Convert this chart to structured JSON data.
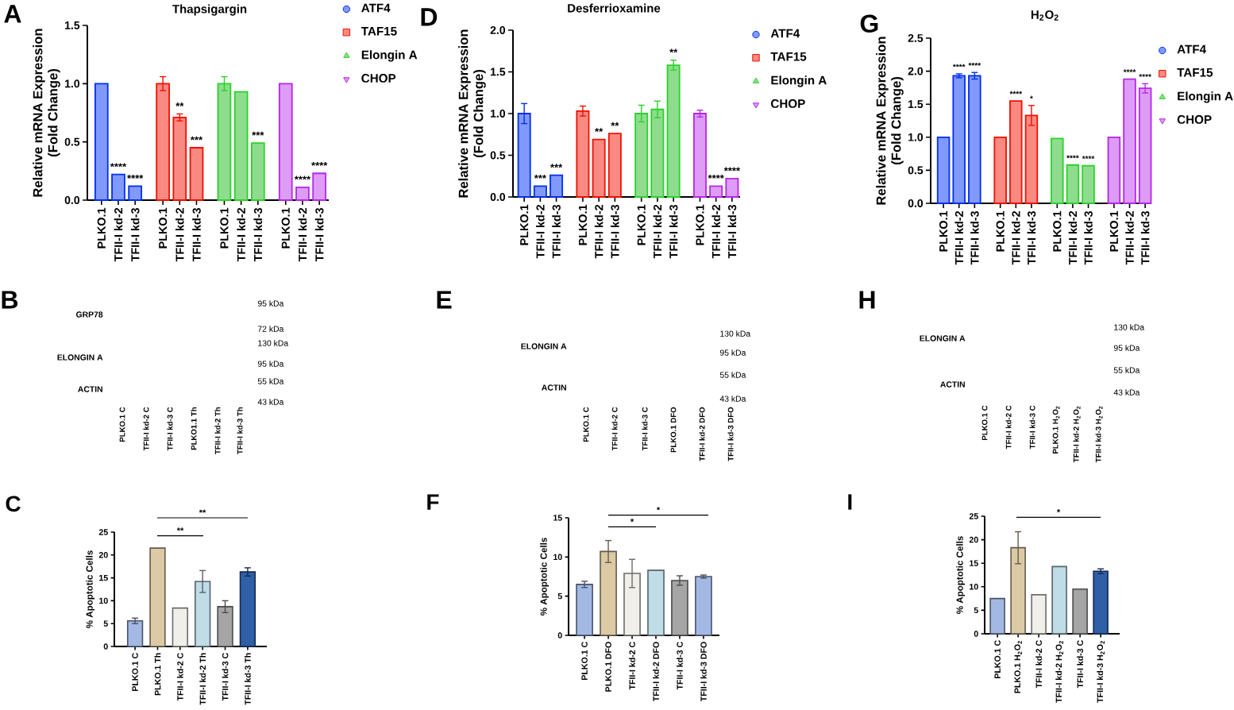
{
  "chart_data": [
    {
      "type": "bar",
      "title": "Thapsigargin",
      "ylabel": "Relative mRNA Expression (Fold Change)",
      "categories": [
        "PLKO.1",
        "TFII-I kd-2",
        "TFII-I kd-3",
        "PLKO.1",
        "TFII-I kd-2",
        "TFII-I kd-3",
        "PLKO.1",
        "TFII-I kd-2",
        "TFII-I kd-3",
        "PLKO.1",
        "TFII-I kd-2",
        "TFII-I kd-3"
      ],
      "series": [
        {
          "name": "ATF4",
          "color": "#8199fb",
          "marker": "circle",
          "values": [
            1.0,
            0.22,
            0.12,
            null,
            null,
            null,
            null,
            null,
            null,
            null,
            null,
            null
          ],
          "value_labels": [
            null,
            "****",
            "****",
            null,
            null,
            null,
            null,
            null,
            null,
            null,
            null,
            null
          ]
        },
        {
          "name": "TAF15",
          "color": "#f98a82",
          "marker": "square",
          "values": [
            null,
            null,
            null,
            1.0,
            0.71,
            0.45,
            null,
            null,
            null,
            null,
            null,
            null
          ],
          "errors": [
            null,
            null,
            null,
            0.06,
            0.03,
            null,
            null,
            null,
            null,
            null,
            null,
            null
          ],
          "value_labels": [
            null,
            null,
            null,
            null,
            "**",
            "***",
            null,
            null,
            null,
            null,
            null,
            null
          ]
        },
        {
          "name": "Elongin A",
          "color": "#8fdc8f",
          "marker": "triangle",
          "values": [
            null,
            null,
            null,
            null,
            null,
            null,
            1.0,
            0.93,
            0.49,
            null,
            null,
            null
          ],
          "errors": [
            null,
            null,
            null,
            null,
            null,
            null,
            0.06,
            null,
            null,
            null,
            null,
            null
          ],
          "value_labels": [
            null,
            null,
            null,
            null,
            null,
            null,
            null,
            null,
            "***",
            null,
            null,
            null
          ]
        },
        {
          "name": "CHOP",
          "color": "#dd9cf5",
          "marker": "triangle down",
          "values": [
            null,
            null,
            null,
            null,
            null,
            null,
            null,
            null,
            null,
            1.0,
            0.11,
            0.23
          ],
          "value_labels": [
            null,
            null,
            null,
            null,
            null,
            null,
            null,
            null,
            null,
            null,
            "****",
            "****"
          ]
        }
      ],
      "ylim": [
        0,
        1.5
      ],
      "yticks": [
        {
          "value": 0,
          "label": "0.0"
        },
        0.5,
        {
          "value": 1,
          "label": "1.0"
        },
        1.5
      ],
      "legend": "top right",
      "annotations": [
        "A"
      ]
    },
    {
      "type": "bar",
      "title": "Desferrioxamine",
      "ylabel": "Relative mRNA Expression (Fold Change)",
      "categories": [
        "PLKO.1",
        "TFII-I kd-2",
        "TFII-I kd-3",
        "PLKO.1",
        "TFII-I kd-2",
        "TFII-I kd-3",
        "PLKO.1",
        "TFII-I kd-2",
        "TFII-I kd-3",
        "PLKO.1",
        "TFII-I kd-2",
        "TFII-I kd-3"
      ],
      "series": [
        {
          "name": "ATF4",
          "color": "#8199fb",
          "marker": "circle",
          "values": [
            1.0,
            0.13,
            0.26,
            null,
            null,
            null,
            null,
            null,
            null,
            null,
            null,
            null
          ],
          "errors": [
            0.12,
            null,
            null,
            null,
            null,
            null,
            null,
            null,
            null,
            null,
            null,
            null
          ],
          "value_labels": [
            null,
            "***",
            "***",
            null,
            null,
            null,
            null,
            null,
            null,
            null,
            null,
            null
          ]
        },
        {
          "name": "TAF15",
          "color": "#f98a82",
          "marker": "square",
          "values": [
            null,
            null,
            null,
            1.03,
            0.69,
            0.76,
            null,
            null,
            null,
            null,
            null,
            null
          ],
          "errors": [
            null,
            null,
            null,
            0.06,
            null,
            null,
            null,
            null,
            null,
            null,
            null,
            null
          ],
          "value_labels": [
            null,
            null,
            null,
            null,
            "**",
            "**",
            null,
            null,
            null,
            null,
            null,
            null
          ]
        },
        {
          "name": "Elongin A",
          "color": "#8fdc8f",
          "marker": "triangle",
          "values": [
            null,
            null,
            null,
            null,
            null,
            null,
            1.0,
            1.05,
            1.58,
            null,
            null,
            null
          ],
          "errors": [
            null,
            null,
            null,
            null,
            null,
            null,
            0.1,
            0.1,
            0.06,
            null,
            null,
            null
          ],
          "value_labels": [
            null,
            null,
            null,
            null,
            null,
            null,
            null,
            null,
            "**",
            null,
            null,
            null
          ]
        },
        {
          "name": "CHOP",
          "color": "#dd9cf5",
          "marker": "triangle down",
          "values": [
            null,
            null,
            null,
            null,
            null,
            null,
            null,
            null,
            null,
            1.0,
            0.13,
            0.22
          ],
          "errors": [
            null,
            null,
            null,
            null,
            null,
            null,
            null,
            null,
            null,
            0.04,
            null,
            null
          ],
          "value_labels": [
            null,
            null,
            null,
            null,
            null,
            null,
            null,
            null,
            null,
            null,
            "****",
            "****"
          ]
        }
      ],
      "ylim": [
        0,
        2
      ],
      "yticks": [
        {
          "value": 0,
          "label": "0.0"
        },
        0.5,
        {
          "value": 1,
          "label": "1.0"
        },
        1.5,
        {
          "value": 2,
          "label": "2.0"
        }
      ],
      "legend": "top right",
      "annotations": [
        "D"
      ]
    },
    {
      "type": "bar",
      "title": "H$_{2}$O$_{2}$",
      "ylabel": "Relative mRNA Expression (Fold Change)",
      "categories": [
        "PLKO.1",
        "TFII-I kd-2",
        "TFII-I kd-3",
        "PLKO.1",
        "TFII-I kd-2",
        "TFII-I kd-3",
        "PLKO.1",
        "TFII-I kd-2",
        "TFII-I kd-3",
        "PLKO.1",
        "TFII-I kd-2",
        "TFII-I kd-3"
      ],
      "series": [
        {
          "name": "ATF4",
          "color": "#8199fb",
          "marker": "circle",
          "values": [
            1.0,
            1.93,
            1.93,
            null,
            null,
            null,
            null,
            null,
            null,
            null,
            null,
            null
          ],
          "errors": [
            null,
            0.03,
            0.05,
            null,
            null,
            null,
            null,
            null,
            null,
            null,
            null,
            null
          ],
          "value_labels": [
            null,
            "****",
            "****",
            null,
            null,
            null,
            null,
            null,
            null,
            null,
            null,
            null
          ]
        },
        {
          "name": "TAF15",
          "color": "#f98a82",
          "marker": "square",
          "values": [
            null,
            null,
            null,
            1.0,
            1.55,
            1.33,
            null,
            null,
            null,
            null,
            null,
            null
          ],
          "errors": [
            null,
            null,
            null,
            null,
            null,
            0.15,
            null,
            null,
            null,
            null,
            null,
            null
          ],
          "value_labels": [
            null,
            null,
            null,
            null,
            "****",
            "*",
            null,
            null,
            null,
            null,
            null,
            null
          ]
        },
        {
          "name": "Elongin A",
          "color": "#8fdc8f",
          "marker": "triangle",
          "values": [
            null,
            null,
            null,
            null,
            null,
            null,
            0.98,
            0.58,
            0.57,
            null,
            null,
            null
          ],
          "value_labels": [
            null,
            null,
            null,
            null,
            null,
            null,
            null,
            "****",
            "****",
            null,
            null,
            null
          ]
        },
        {
          "name": "CHOP",
          "color": "#dd9cf5",
          "marker": "triangle down",
          "values": [
            null,
            null,
            null,
            null,
            null,
            null,
            null,
            null,
            null,
            1.0,
            1.88,
            1.74
          ],
          "errors": [
            null,
            null,
            null,
            null,
            null,
            null,
            null,
            null,
            null,
            null,
            null,
            0.07
          ],
          "value_labels": [
            null,
            null,
            null,
            null,
            null,
            null,
            null,
            null,
            null,
            null,
            "****",
            "****"
          ]
        }
      ],
      "ylim": [
        0,
        2.5
      ],
      "yticks": [
        {
          "value": 0,
          "label": "0.0"
        },
        0.5,
        {
          "value": 1,
          "label": "1.0"
        },
        1.5,
        {
          "value": 2,
          "label": "2.0"
        },
        2.5
      ],
      "legend": "top right",
      "annotations": [
        "G"
      ]
    },
    {
      "type": "other",
      "categories": [
        "PLKO.1 C",
        "TFII-I kd-2 C",
        "TFII-I kd-3 C",
        "PLKO1.1 Th",
        "TFII-I kd-2 Th",
        "TFII-I kd-3 Th"
      ],
      "annotations": [
        "B",
        "GRP78",
        "95 kDa",
        "72 kDa",
        "ELONGIN A",
        "130 kDa",
        "95 kDa",
        "ACTIN",
        "55 kDa",
        "43 kDa"
      ]
    },
    {
      "type": "other",
      "categories": [
        "PLKO.1 C",
        "TFII-I kd-2 C",
        "TFII-I kd-3 C",
        "PLKO.1 DFO",
        "TFII-I kd-2 DFO",
        "TFII-I kd-3 DFO"
      ],
      "annotations": [
        "E",
        "ELONGIN A",
        "130 kDa",
        "95 kDa",
        "ACTIN",
        "55 kDa",
        "43 kDa"
      ]
    },
    {
      "type": "other",
      "categories": [
        "PLKO.1 C",
        "TFII-I kd-2 C",
        "TFII-I kd-3 C",
        "PLKO.1 H$_{2}$O$_{2}$",
        "TFII-I kd-2 H$_{2}$O$_{2}$",
        "TFII-I kd-3 H$_{2}$O$_{2}$"
      ],
      "annotations": [
        "H",
        "ELONGIN A",
        "130 kDa",
        "95 kDa",
        "ACTIN",
        "55 kDa",
        "43 kDa"
      ]
    },
    {
      "type": "bar",
      "ylabel": "% Apoptotic Cells",
      "categories": [
        "PLKO.1 C",
        "PLKO.1 Th",
        "TFII-I kd-2 C",
        "TFII-I kd-2 Th",
        "TFII-I kd-3 C",
        "TFII-I kd-3 Th"
      ],
      "values": [
        5.6,
        21.5,
        8.4,
        14.2,
        8.7,
        16.3
      ],
      "colors": [
        "#a3b9e4",
        "#dccaa6",
        "#f0efe9",
        "#bfdce7",
        "#a5a5a5",
        "#2f5fa7"
      ],
      "errors": [
        0.6,
        null,
        null,
        2.4,
        1.3,
        0.9
      ],
      "ylim": [
        0,
        25
      ],
      "yticks": [
        0,
        5,
        10,
        15,
        20,
        25
      ],
      "annotations": [
        "C",
        "**",
        "**"
      ]
    },
    {
      "type": "bar",
      "ylabel": "% Apoptotic Cells",
      "categories": [
        "PLKO.1 C",
        "PLKO.1 DFO",
        "TFII-I kd-2 C",
        "TFII-I kd-2 DFO",
        "TFII-I kd-3 C",
        "TFII-I kd-3 DFO"
      ],
      "values": [
        6.5,
        10.7,
        7.9,
        8.3,
        7.0,
        7.5
      ],
      "colors": [
        "#a3b9e4",
        "#dccaa6",
        "#f0efe9",
        "#bfdce7",
        "#a5a5a5",
        "#a3b9e4"
      ],
      "errors": [
        0.4,
        1.4,
        1.8,
        null,
        0.6,
        0.2
      ],
      "ylim": [
        0,
        15
      ],
      "yticks": [
        0,
        5,
        10,
        15
      ],
      "annotations": [
        "F",
        "*",
        "*"
      ]
    },
    {
      "type": "bar",
      "ylabel": "% Apoptotic Cells",
      "categories": [
        "PLKO.1 C",
        "PLKO.1 H$_{2}$O$_{2}$",
        "TFII-I kd-2 C",
        "TFII-I kd-2 H$_{2}$O$_{2}$",
        "TFII-I kd-3 C",
        "TFII-I kd-3 H$_{2}$O$_{2}$"
      ],
      "values": [
        7.5,
        18.3,
        8.3,
        14.3,
        9.5,
        13.3
      ],
      "colors": [
        "#a3b9e4",
        "#dccaa6",
        "#f0efe9",
        "#bfdce7",
        "#a5a5a5",
        "#2f5fa7"
      ],
      "errors": [
        null,
        3.4,
        null,
        null,
        null,
        0.5
      ],
      "ylim": [
        0,
        25
      ],
      "yticks": [
        0,
        5,
        10,
        15,
        20,
        25
      ],
      "annotations": [
        "I",
        "*"
      ]
    }
  ]
}
